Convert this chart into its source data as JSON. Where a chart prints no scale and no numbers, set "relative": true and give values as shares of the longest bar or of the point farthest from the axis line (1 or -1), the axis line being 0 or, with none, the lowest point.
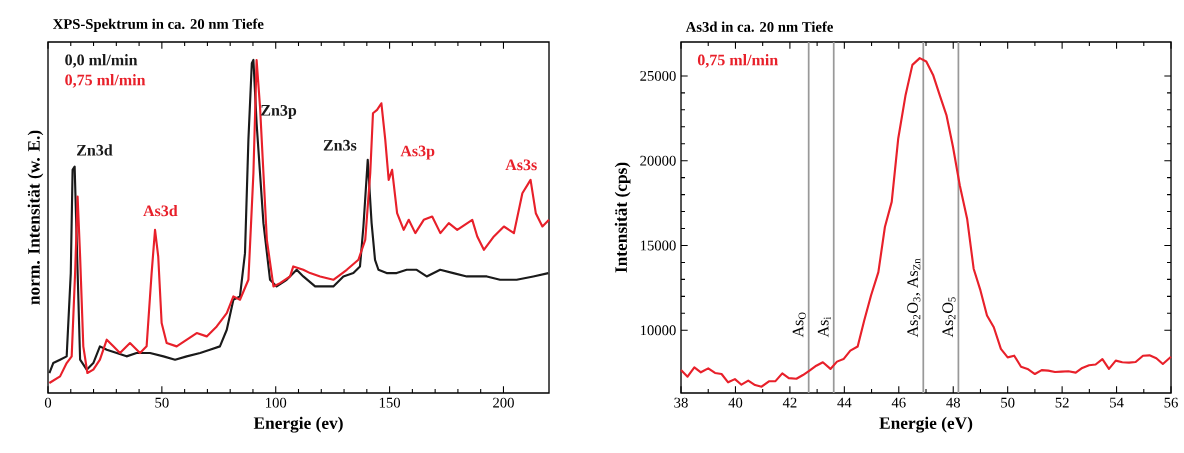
{
  "chart_data": [
    {
      "type": "line",
      "title": "XPS-Spektrum in ca. 20 nm Tiefe",
      "xlabel": "Energie (ev)",
      "ylabel": "norm. Intensität (w. E.)",
      "relative": true,
      "tick_labels": "x",
      "legend": "top left",
      "grid": false,
      "marker": "none",
      "line_style": "solid",
      "xlim": [
        0,
        220
      ],
      "xticks": [
        0,
        50,
        100,
        150,
        200
      ],
      "series": [
        {
          "name": "0,0 ml/min",
          "color": "#1a1a1a",
          "x": [
            0.6,
            2.3,
            5.3,
            8.2,
            10.0,
            10.8,
            11.7,
            12.6,
            14.1,
            17.0,
            19.9,
            22.8,
            25.8,
            30.2,
            34.5,
            38.9,
            44.8,
            50.7,
            55.8,
            60.9,
            66.8,
            71.1,
            75.5,
            78.5,
            81.4,
            84.3,
            86.5,
            88.0,
            89.5,
            90.2,
            91.6,
            94.6,
            97.5,
            100.4,
            104.8,
            109.2,
            112.1,
            117.3,
            125.3,
            129.7,
            134.1,
            137.0,
            138.5,
            140.4,
            142.1,
            143.6,
            145.1,
            148.7,
            153.1,
            157.5,
            161.9,
            166.3,
            172.2,
            178.0,
            183.9,
            192.7,
            198.5,
            205.8,
            213.1,
            219.7
          ],
          "values": [
            0.06,
            0.09,
            0.1,
            0.11,
            0.36,
            0.67,
            0.68,
            0.46,
            0.1,
            0.07,
            0.09,
            0.14,
            0.13,
            0.12,
            0.11,
            0.12,
            0.12,
            0.11,
            0.1,
            0.11,
            0.12,
            0.13,
            0.14,
            0.19,
            0.28,
            0.29,
            0.42,
            0.76,
            0.99,
            1.0,
            0.81,
            0.51,
            0.34,
            0.32,
            0.34,
            0.37,
            0.35,
            0.32,
            0.32,
            0.35,
            0.36,
            0.38,
            0.5,
            0.7,
            0.51,
            0.4,
            0.37,
            0.36,
            0.36,
            0.37,
            0.37,
            0.35,
            0.37,
            0.36,
            0.35,
            0.35,
            0.34,
            0.34,
            0.35,
            0.36
          ]
        },
        {
          "name": "0,75 ml/min",
          "color": "#e8202a",
          "x": [
            0.6,
            5.3,
            8.2,
            10.4,
            11.9,
            13.0,
            14.1,
            15.5,
            17.3,
            19.9,
            22.8,
            25.8,
            28.7,
            31.6,
            36.0,
            40.4,
            43.3,
            45.5,
            47.0,
            48.4,
            49.9,
            52.1,
            56.5,
            60.9,
            65.3,
            69.7,
            74.1,
            78.5,
            81.4,
            84.3,
            88.0,
            90.2,
            91.6,
            93.1,
            96.1,
            99.0,
            101.9,
            106.3,
            107.7,
            112.1,
            115.1,
            119.5,
            125.3,
            131.2,
            136.3,
            139.3,
            141.5,
            142.7,
            144.5,
            146.4,
            148.1,
            149.6,
            151.1,
            153.3,
            156.2,
            158.4,
            161.3,
            165.0,
            168.7,
            172.3,
            176.0,
            179.7,
            186.3,
            188.5,
            191.4,
            195.8,
            200.2,
            204.6,
            208.3,
            211.9,
            214.2,
            217.1,
            220.0
          ],
          "values": [
            0.03,
            0.05,
            0.09,
            0.11,
            0.36,
            0.59,
            0.41,
            0.14,
            0.06,
            0.07,
            0.1,
            0.16,
            0.14,
            0.12,
            0.15,
            0.12,
            0.14,
            0.36,
            0.49,
            0.41,
            0.21,
            0.15,
            0.14,
            0.16,
            0.18,
            0.17,
            0.2,
            0.24,
            0.29,
            0.28,
            0.34,
            0.66,
            1.0,
            0.86,
            0.46,
            0.32,
            0.33,
            0.35,
            0.38,
            0.37,
            0.36,
            0.35,
            0.34,
            0.37,
            0.4,
            0.46,
            0.66,
            0.84,
            0.85,
            0.87,
            0.76,
            0.64,
            0.67,
            0.54,
            0.49,
            0.52,
            0.48,
            0.52,
            0.53,
            0.48,
            0.51,
            0.49,
            0.52,
            0.47,
            0.43,
            0.47,
            0.5,
            0.48,
            0.6,
            0.64,
            0.54,
            0.5,
            0.52
          ]
        }
      ],
      "annotations": [
        {
          "text": "Zn3d",
          "x": 11.7,
          "y": 0.68
        },
        {
          "text": "As3d",
          "x": 47.0,
          "y": 0.49
        },
        {
          "text": "Zn3p",
          "x": 90.2,
          "y": 1.0
        },
        {
          "text": "Zn3s",
          "x": 140.4,
          "y": 0.7
        },
        {
          "text": "As3p",
          "x": 146.4,
          "y": 0.87
        },
        {
          "text": "As3s",
          "x": 211.9,
          "y": 0.64
        }
      ]
    },
    {
      "type": "line",
      "title": "As3d in ca. 20 nm Tiefe",
      "xlabel": "Energie (eV)",
      "ylabel": "Intensität (cps)",
      "legend": "top left",
      "grid": false,
      "marker": "none",
      "line_style": "solid",
      "xlim": [
        38,
        56
      ],
      "xticks": [
        38,
        40,
        42,
        44,
        46,
        48,
        50,
        52,
        54,
        56
      ],
      "ylim": [
        6300,
        27000
      ],
      "yticks": [
        10000,
        15000,
        20000,
        25000
      ],
      "series": [
        {
          "name": "0,75 ml/min",
          "color": "#e8202a",
          "x": [
            38.0,
            38.24,
            38.49,
            38.73,
            39.0,
            39.25,
            39.49,
            39.73,
            39.98,
            40.22,
            40.47,
            40.72,
            40.96,
            41.23,
            41.47,
            41.72,
            41.96,
            42.24,
            42.48,
            42.72,
            42.97,
            43.21,
            43.49,
            43.73,
            43.97,
            44.22,
            44.49,
            44.73,
            44.98,
            45.25,
            45.49,
            45.74,
            45.98,
            46.25,
            46.5,
            46.77,
            47.01,
            47.26,
            47.5,
            47.75,
            47.99,
            48.24,
            48.51,
            48.75,
            49.0,
            49.24,
            49.49,
            49.75,
            50.0,
            50.24,
            50.49,
            50.73,
            51.0,
            51.25,
            51.49,
            51.74,
            51.98,
            52.23,
            52.5,
            52.74,
            52.99,
            53.23,
            53.48,
            53.72,
            53.97,
            54.21,
            54.46,
            54.7,
            54.97,
            55.21,
            55.46,
            55.7,
            56.0
          ],
          "values": [
            7650,
            7260,
            7810,
            7520,
            7750,
            7480,
            7420,
            6930,
            7120,
            6790,
            7030,
            6770,
            6670,
            6990,
            7000,
            7460,
            7180,
            7140,
            7360,
            7620,
            7910,
            8110,
            7720,
            8150,
            8300,
            8800,
            9040,
            10570,
            12050,
            13430,
            16090,
            17570,
            21310,
            23880,
            25650,
            26050,
            25850,
            25060,
            23880,
            22690,
            20820,
            18550,
            16580,
            13630,
            12350,
            10870,
            10180,
            8900,
            8400,
            8500,
            7850,
            7720,
            7420,
            7650,
            7620,
            7540,
            7560,
            7580,
            7500,
            7780,
            7940,
            7980,
            8300,
            7720,
            8210,
            8110,
            8090,
            8130,
            8500,
            8520,
            8350,
            8010,
            8440
          ]
        }
      ],
      "ref_lines": [
        {
          "axis": "x",
          "value": 42.69,
          "label": "As$_{O}$",
          "color": "#999999"
        },
        {
          "axis": "x",
          "value": 43.61,
          "label": "As$_{i}$",
          "color": "#999999"
        },
        {
          "axis": "x",
          "value": 46.9,
          "label": "As$_{2}$O$_{3}$, As$_{Zn}$",
          "color": "#999999"
        },
        {
          "axis": "x",
          "value": 48.19,
          "label": "As$_{2}$O$_{5}$",
          "color": "#999999"
        }
      ]
    }
  ]
}
